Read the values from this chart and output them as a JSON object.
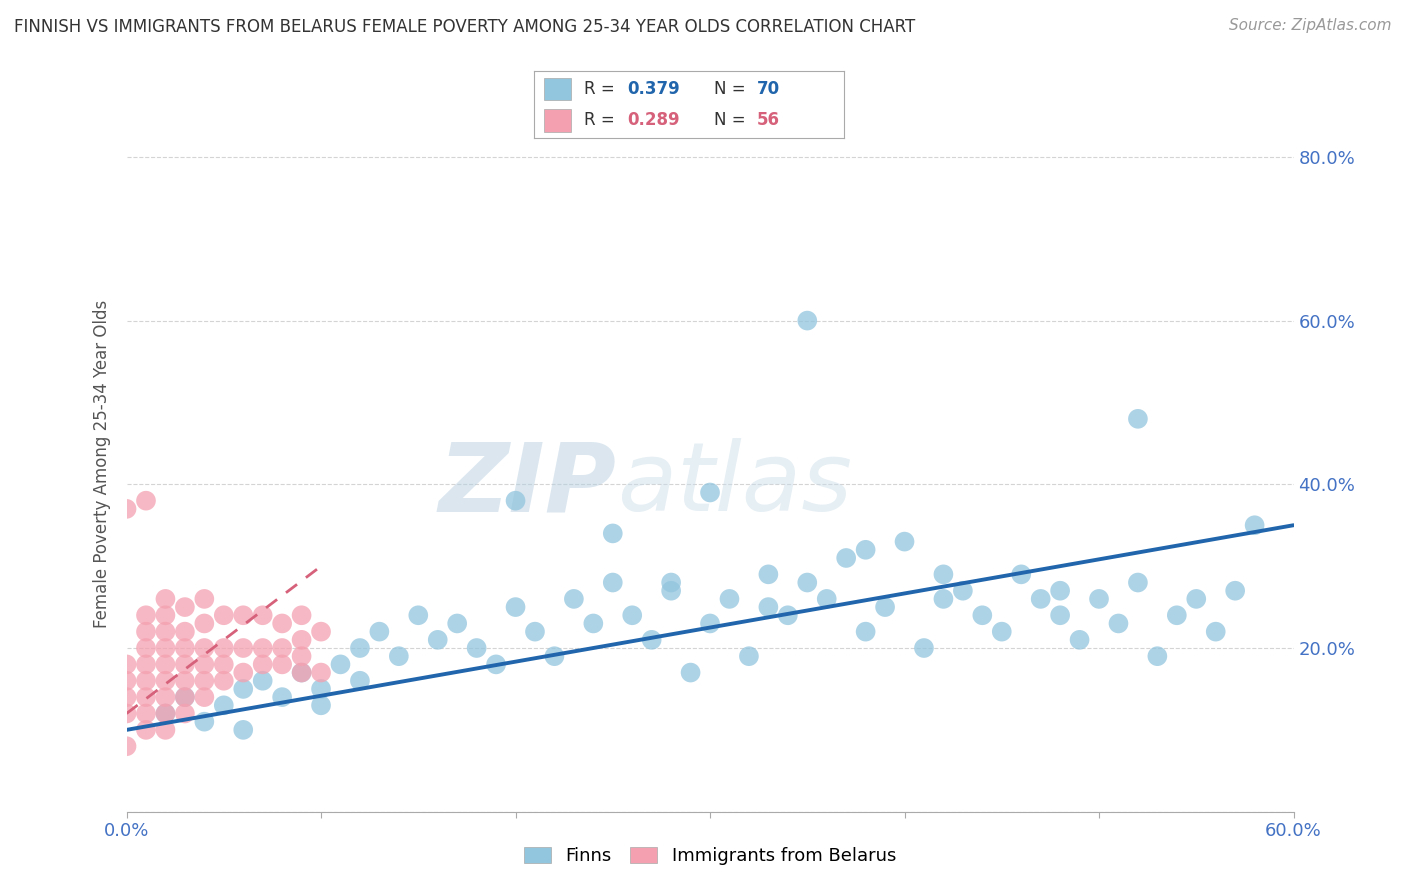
{
  "title": "FINNISH VS IMMIGRANTS FROM BELARUS FEMALE POVERTY AMONG 25-34 YEAR OLDS CORRELATION CHART",
  "source": "Source: ZipAtlas.com",
  "ylabel": "Female Poverty Among 25-34 Year Olds",
  "xlabel": "",
  "xlim": [
    0.0,
    0.6
  ],
  "ylim": [
    0.0,
    0.85
  ],
  "xticklabels_show": [
    "0.0%",
    "60.0%"
  ],
  "yticklabels_right": [
    "20.0%",
    "40.0%",
    "60.0%",
    "80.0%"
  ],
  "legend1_R": "0.379",
  "legend1_N": "70",
  "legend2_R": "0.289",
  "legend2_N": "56",
  "finns_color": "#92c5de",
  "belarus_color": "#f4a0b0",
  "finn_line_color": "#2166ac",
  "belarus_line_color": "#d6617a",
  "watermark": "ZIPatlas",
  "watermark_color_zip": "#b8cfe0",
  "watermark_color_atlas": "#c0d8e8",
  "background_color": "#ffffff",
  "grid_color": "#d0d0d0",
  "finns_x": [
    0.02,
    0.03,
    0.04,
    0.05,
    0.06,
    0.06,
    0.07,
    0.08,
    0.09,
    0.1,
    0.1,
    0.11,
    0.12,
    0.12,
    0.13,
    0.14,
    0.15,
    0.16,
    0.17,
    0.18,
    0.19,
    0.2,
    0.21,
    0.22,
    0.23,
    0.24,
    0.25,
    0.26,
    0.27,
    0.28,
    0.29,
    0.3,
    0.31,
    0.32,
    0.33,
    0.34,
    0.35,
    0.36,
    0.37,
    0.38,
    0.39,
    0.4,
    0.41,
    0.42,
    0.43,
    0.44,
    0.45,
    0.46,
    0.47,
    0.48,
    0.49,
    0.5,
    0.51,
    0.52,
    0.53,
    0.54,
    0.55,
    0.56,
    0.57,
    0.58,
    0.3,
    0.35,
    0.2,
    0.25,
    0.42,
    0.38,
    0.48,
    0.52,
    0.28,
    0.33
  ],
  "finns_y": [
    0.12,
    0.14,
    0.11,
    0.13,
    0.15,
    0.1,
    0.16,
    0.14,
    0.17,
    0.15,
    0.13,
    0.18,
    0.16,
    0.2,
    0.22,
    0.19,
    0.24,
    0.21,
    0.23,
    0.2,
    0.18,
    0.25,
    0.22,
    0.19,
    0.26,
    0.23,
    0.28,
    0.24,
    0.21,
    0.27,
    0.17,
    0.23,
    0.26,
    0.19,
    0.29,
    0.24,
    0.28,
    0.26,
    0.31,
    0.22,
    0.25,
    0.33,
    0.2,
    0.29,
    0.27,
    0.24,
    0.22,
    0.29,
    0.26,
    0.24,
    0.21,
    0.26,
    0.23,
    0.28,
    0.19,
    0.24,
    0.26,
    0.22,
    0.27,
    0.35,
    0.39,
    0.6,
    0.38,
    0.34,
    0.26,
    0.32,
    0.27,
    0.48,
    0.28,
    0.25
  ],
  "belarus_x": [
    0.0,
    0.0,
    0.0,
    0.0,
    0.0,
    0.01,
    0.01,
    0.01,
    0.01,
    0.01,
    0.01,
    0.01,
    0.01,
    0.02,
    0.02,
    0.02,
    0.02,
    0.02,
    0.02,
    0.02,
    0.02,
    0.02,
    0.03,
    0.03,
    0.03,
    0.03,
    0.03,
    0.03,
    0.03,
    0.04,
    0.04,
    0.04,
    0.04,
    0.04,
    0.04,
    0.05,
    0.05,
    0.05,
    0.05,
    0.06,
    0.06,
    0.06,
    0.07,
    0.07,
    0.07,
    0.08,
    0.08,
    0.08,
    0.09,
    0.09,
    0.09,
    0.09,
    0.1,
    0.1,
    0.0,
    0.01
  ],
  "belarus_y": [
    0.12,
    0.14,
    0.16,
    0.18,
    0.08,
    0.1,
    0.12,
    0.14,
    0.16,
    0.18,
    0.2,
    0.22,
    0.24,
    0.1,
    0.12,
    0.14,
    0.16,
    0.18,
    0.2,
    0.22,
    0.24,
    0.26,
    0.12,
    0.14,
    0.16,
    0.18,
    0.2,
    0.22,
    0.25,
    0.14,
    0.16,
    0.18,
    0.2,
    0.23,
    0.26,
    0.16,
    0.18,
    0.2,
    0.24,
    0.17,
    0.2,
    0.24,
    0.18,
    0.2,
    0.24,
    0.18,
    0.2,
    0.23,
    0.17,
    0.19,
    0.21,
    0.24,
    0.17,
    0.22,
    0.37,
    0.38
  ],
  "finn_line_x": [
    0.0,
    0.6
  ],
  "finn_line_y": [
    0.1,
    0.35
  ],
  "belarus_line_x": [
    0.0,
    0.1
  ],
  "belarus_line_y": [
    0.12,
    0.3
  ]
}
